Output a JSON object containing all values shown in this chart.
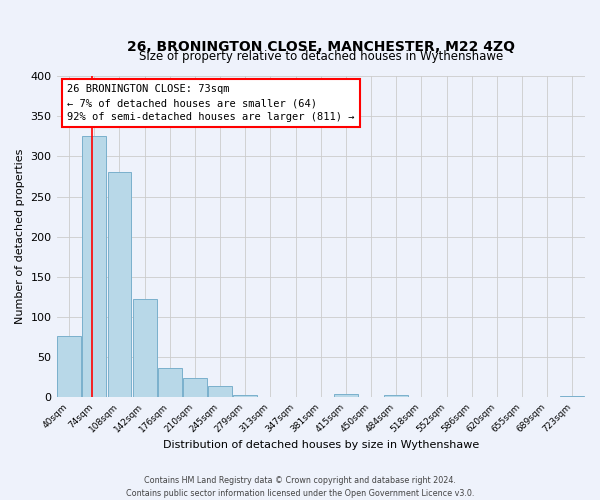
{
  "title": "26, BRONINGTON CLOSE, MANCHESTER, M22 4ZQ",
  "subtitle": "Size of property relative to detached houses in Wythenshawe",
  "xlabel": "Distribution of detached houses by size in Wythenshawe",
  "ylabel": "Number of detached properties",
  "bin_labels": [
    "40sqm",
    "74sqm",
    "108sqm",
    "142sqm",
    "176sqm",
    "210sqm",
    "245sqm",
    "279sqm",
    "313sqm",
    "347sqm",
    "381sqm",
    "415sqm",
    "450sqm",
    "484sqm",
    "518sqm",
    "552sqm",
    "586sqm",
    "620sqm",
    "655sqm",
    "689sqm",
    "723sqm"
  ],
  "bar_heights": [
    76,
    325,
    281,
    123,
    37,
    24,
    14,
    3,
    0,
    0,
    0,
    4,
    0,
    3,
    0,
    0,
    0,
    0,
    0,
    0,
    2
  ],
  "bar_color": "#b8d8e8",
  "bar_edge_color": "#7ab0cc",
  "ylim": [
    0,
    400
  ],
  "yticks": [
    0,
    50,
    100,
    150,
    200,
    250,
    300,
    350,
    400
  ],
  "annotation_line1": "26 BRONINGTON CLOSE: 73sqm",
  "annotation_line2": "← 7% of detached houses are smaller (64)",
  "annotation_line3": "92% of semi-detached houses are larger (811) →",
  "footer_line1": "Contains HM Land Registry data © Crown copyright and database right 2024.",
  "footer_line2": "Contains public sector information licensed under the Open Government Licence v3.0.",
  "background_color": "#eef2fb",
  "grid_color": "#cccccc",
  "vline_position": 0.92
}
